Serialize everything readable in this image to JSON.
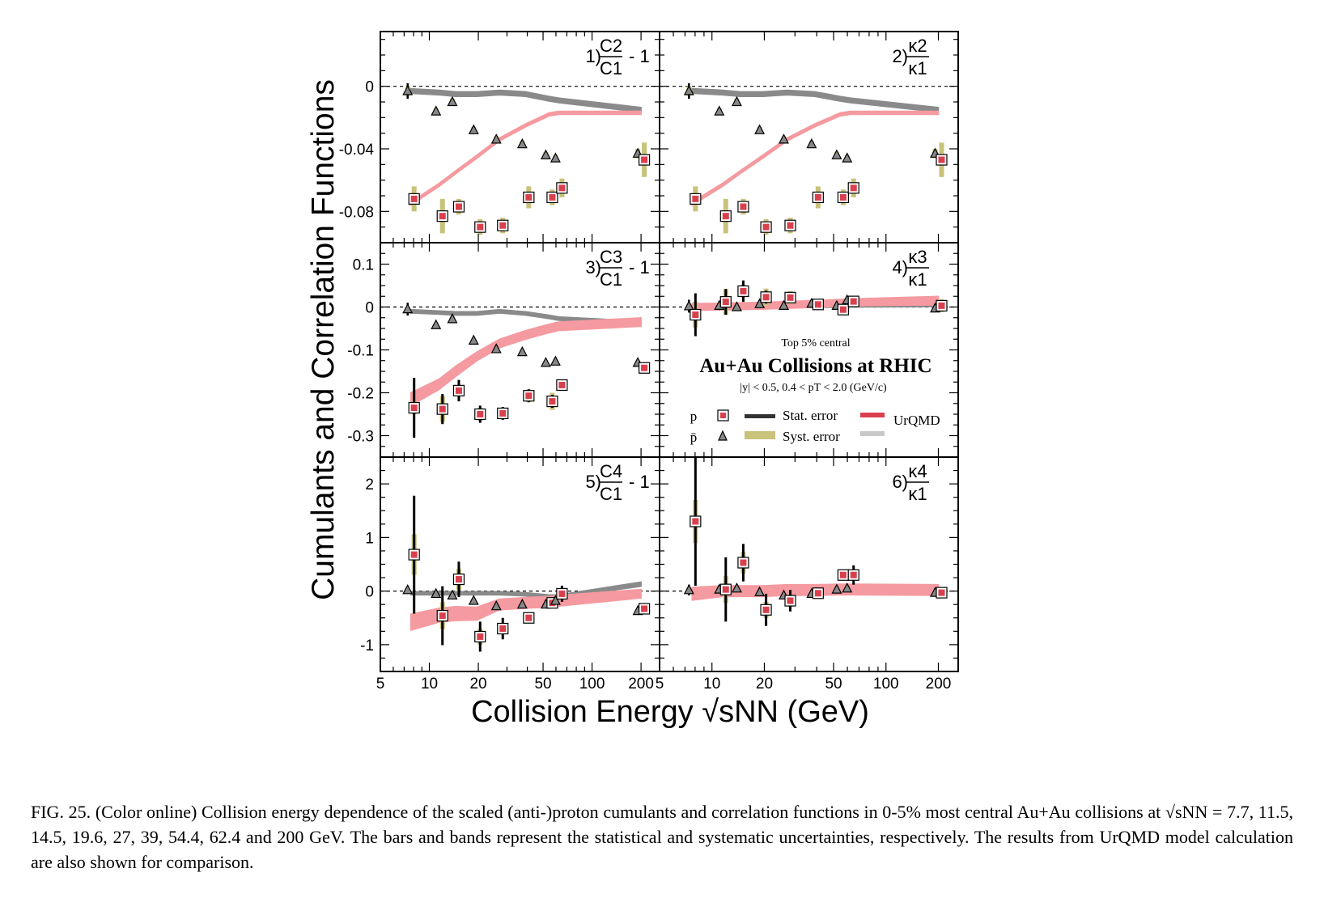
{
  "caption": "FIG. 25. (Color online) Collision energy dependence of the scaled (anti-)proton cumulants and correlation functions in 0-5% most central Au+Au collisions at √sNN = 7.7, 11.5, 14.5, 19.6, 27, 39, 54.4, 62.4 and 200 GeV. The bars and bands represent the statistical and systematic uncertainties, respectively. The results from UrQMD model calculation are also shown for comparison.",
  "colors": {
    "proton": "#d9404e",
    "antiproton": "#888888",
    "stat": "#000000",
    "syst": "#c8c27a",
    "urqmd_p": "#f59aa0",
    "urqmd_pbar": "#8a8a8a"
  },
  "legend": {
    "header": "Top 5% central",
    "title": "Au+Au Collisions at RHIC",
    "cuts": "|y| < 0.5, 0.4 < pT < 2.0 (GeV/c)",
    "p_label": "p",
    "pbar_label": "p̄",
    "stat_label": "Stat. error",
    "syst_label": "Syst. error",
    "model_label": "UrQMD"
  },
  "chart_data": {
    "type": "scatter",
    "xlabel": "Collision Energy √sNN (GeV)",
    "ylabel": "Cumulants and Correlation Functions",
    "xscale": "log",
    "xlim": [
      5,
      260
    ],
    "xticks": [
      5,
      10,
      20,
      50,
      100,
      200
    ],
    "legend_position": "panel-4 lower half",
    "energies": [
      7.7,
      11.5,
      14.5,
      19.6,
      27,
      39,
      54.4,
      62.4,
      200
    ],
    "panels": [
      {
        "id": 1,
        "label": "1)",
        "num": "C2",
        "den": "C1",
        "suffix": "- 1",
        "ylim": [
          -0.1,
          0.035
        ],
        "yticks": [
          0,
          -0.04,
          -0.08
        ],
        "yticklabels": [
          "0",
          "-0.04",
          "-0.08"
        ],
        "proton": [
          -0.072,
          -0.083,
          -0.077,
          -0.09,
          -0.089,
          -0.071,
          -0.071,
          -0.065,
          -0.047
        ],
        "proton_stat": [
          0.003,
          0.003,
          0.003,
          0.002,
          0.002,
          0.002,
          0.002,
          0.002,
          0.002
        ],
        "proton_syst": [
          0.008,
          0.011,
          0.005,
          0.005,
          0.005,
          0.007,
          0.005,
          0.006,
          0.011
        ],
        "antiproton": [
          -0.003,
          -0.016,
          -0.01,
          -0.028,
          -0.034,
          -0.037,
          -0.044,
          -0.046,
          -0.043
        ],
        "antiproton_stat": [
          0.005,
          0.002,
          0.002,
          0.002,
          0.002,
          0.002,
          0.002,
          0.002,
          0.002
        ],
        "antiproton_syst": [
          0.003,
          0.002,
          0.002,
          0.002,
          0.002,
          0.002,
          0.002,
          0.002,
          0.003
        ],
        "urqmd_p": [
          -0.075,
          -0.063,
          -0.055,
          -0.045,
          -0.034,
          -0.025,
          -0.018,
          -0.017,
          -0.017
        ],
        "urqmd_p_width": [
          0.001,
          0.001,
          0.001,
          0.001,
          0.001,
          0.001,
          0.001,
          0.001,
          0.001
        ],
        "urqmd_pbar": [
          -0.003,
          -0.004,
          -0.005,
          -0.005,
          -0.004,
          -0.005,
          -0.008,
          -0.009,
          -0.015
        ],
        "urqmd_pbar_width": [
          0.0015,
          0.0015,
          0.0015,
          0.0015,
          0.0015,
          0.0015,
          0.0015,
          0.0015,
          0.0015
        ]
      },
      {
        "id": 2,
        "label": "2)",
        "num": "κ2",
        "den": "κ1",
        "suffix": "",
        "ylim": [
          -0.1,
          0.035
        ],
        "yticks": [
          0,
          -0.04,
          -0.08
        ],
        "yticklabels": [
          "",
          "",
          ""
        ],
        "proton": [
          -0.072,
          -0.083,
          -0.077,
          -0.09,
          -0.089,
          -0.071,
          -0.071,
          -0.065,
          -0.047
        ],
        "proton_stat": [
          0.003,
          0.003,
          0.003,
          0.002,
          0.002,
          0.002,
          0.002,
          0.002,
          0.002
        ],
        "proton_syst": [
          0.008,
          0.011,
          0.005,
          0.005,
          0.005,
          0.007,
          0.005,
          0.006,
          0.011
        ],
        "antiproton": [
          -0.003,
          -0.016,
          -0.01,
          -0.028,
          -0.034,
          -0.037,
          -0.044,
          -0.046,
          -0.043
        ],
        "antiproton_stat": [
          0.005,
          0.002,
          0.002,
          0.002,
          0.002,
          0.002,
          0.002,
          0.002,
          0.002
        ],
        "antiproton_syst": [
          0.003,
          0.002,
          0.002,
          0.002,
          0.002,
          0.002,
          0.002,
          0.002,
          0.003
        ],
        "urqmd_p": [
          -0.075,
          -0.063,
          -0.055,
          -0.045,
          -0.034,
          -0.025,
          -0.018,
          -0.017,
          -0.017
        ],
        "urqmd_p_width": [
          0.001,
          0.001,
          0.001,
          0.001,
          0.001,
          0.001,
          0.001,
          0.001,
          0.001
        ],
        "urqmd_pbar": [
          -0.003,
          -0.004,
          -0.005,
          -0.005,
          -0.004,
          -0.005,
          -0.008,
          -0.009,
          -0.015
        ],
        "urqmd_pbar_width": [
          0.0015,
          0.0015,
          0.0015,
          0.0015,
          0.0015,
          0.0015,
          0.0015,
          0.0015,
          0.0015
        ]
      },
      {
        "id": 3,
        "label": "3)",
        "num": "C3",
        "den": "C1",
        "suffix": "- 1",
        "ylim": [
          -0.35,
          0.15
        ],
        "yticks": [
          0.1,
          0,
          -0.1,
          -0.2,
          -0.3
        ],
        "yticklabels": [
          "0.1",
          "0",
          "-0.1",
          "-0.2",
          "-0.3"
        ],
        "proton": [
          -0.235,
          -0.238,
          -0.195,
          -0.25,
          -0.248,
          -0.207,
          -0.22,
          -0.182,
          -0.142
        ],
        "proton_stat": [
          0.07,
          0.035,
          0.025,
          0.02,
          0.015,
          0.015,
          0.015,
          0.012,
          0.008
        ],
        "proton_syst": [
          0.015,
          0.03,
          0.012,
          0.015,
          0.012,
          0.015,
          0.02,
          0.012,
          0.01
        ],
        "antiproton": [
          -0.005,
          -0.042,
          -0.028,
          -0.078,
          -0.098,
          -0.105,
          -0.13,
          -0.127,
          -0.13
        ],
        "antiproton_stat": [
          0.015,
          0.008,
          0.008,
          0.006,
          0.005,
          0.005,
          0.005,
          0.005,
          0.006
        ],
        "antiproton_syst": [
          0.005,
          0.005,
          0.005,
          0.005,
          0.005,
          0.005,
          0.005,
          0.005,
          0.005
        ],
        "urqmd_p": [
          -0.215,
          -0.18,
          -0.15,
          -0.115,
          -0.085,
          -0.065,
          -0.05,
          -0.045,
          -0.035
        ],
        "urqmd_p_width": [
          0.015,
          0.012,
          0.012,
          0.01,
          0.01,
          0.01,
          0.01,
          0.01,
          0.01
        ],
        "urqmd_pbar": [
          -0.01,
          -0.013,
          -0.015,
          -0.015,
          -0.01,
          -0.015,
          -0.023,
          -0.027,
          -0.037
        ],
        "urqmd_pbar_width": [
          0.004,
          0.004,
          0.004,
          0.004,
          0.004,
          0.004,
          0.004,
          0.004,
          0.004
        ]
      },
      {
        "id": 4,
        "label": "4)",
        "num": "κ3",
        "den": "κ1",
        "suffix": "",
        "ylim": [
          -0.35,
          0.15
        ],
        "yticks": [
          0.1,
          0,
          -0.1,
          -0.2,
          -0.3
        ],
        "yticklabels": [
          "",
          "",
          "",
          "",
          ""
        ],
        "proton": [
          -0.018,
          0.012,
          0.037,
          0.023,
          0.022,
          0.006,
          -0.006,
          0.013,
          0.003
        ],
        "proton_stat": [
          0.05,
          0.03,
          0.025,
          0.015,
          0.012,
          0.01,
          0.012,
          0.012,
          0.01
        ],
        "proton_syst": [
          0.03,
          0.03,
          0.015,
          0.02,
          0.015,
          0.01,
          0.01,
          0.01,
          0.015
        ],
        "antiproton": [
          0.002,
          0.003,
          0.0,
          0.007,
          0.003,
          0.008,
          0.003,
          0.016,
          -0.003
        ],
        "antiproton_stat": [
          0.015,
          0.01,
          0.008,
          0.008,
          0.006,
          0.006,
          0.006,
          0.006,
          0.006
        ],
        "antiproton_syst": [
          0.006,
          0.005,
          0.005,
          0.005,
          0.005,
          0.005,
          0.005,
          0.005,
          0.006
        ],
        "urqmd_p": [
          0.0,
          0.001,
          0.002,
          0.003,
          0.005,
          0.007,
          0.01,
          0.011,
          0.015
        ],
        "urqmd_p_width": [
          0.008,
          0.008,
          0.008,
          0.008,
          0.008,
          0.008,
          0.008,
          0.008,
          0.01
        ],
        "urqmd_pbar": [
          0.0,
          0.0,
          0.001,
          0.001,
          0.001,
          0.002,
          0.002,
          0.003,
          0.004
        ],
        "urqmd_pbar_width": [
          0.003,
          0.003,
          0.003,
          0.003,
          0.003,
          0.003,
          0.003,
          0.003,
          0.003
        ]
      },
      {
        "id": 5,
        "label": "5)",
        "num": "C4",
        "den": "C1",
        "suffix": "- 1",
        "ylim": [
          -1.5,
          2.5
        ],
        "yticks": [
          2,
          1,
          0,
          -1
        ],
        "yticklabels": [
          "2",
          "1",
          "0",
          "-1"
        ],
        "proton": [
          0.68,
          -0.46,
          0.22,
          -0.85,
          -0.7,
          -0.5,
          -0.22,
          -0.05,
          -0.33
        ],
        "proton_stat": [
          1.1,
          0.55,
          0.33,
          0.28,
          0.2,
          0.1,
          0.1,
          0.15,
          0.06
        ],
        "proton_syst": [
          0.38,
          0.25,
          0.2,
          0.15,
          0.1,
          0.06,
          0.08,
          0.1,
          0.1
        ],
        "antiproton": [
          0.02,
          -0.05,
          -0.08,
          -0.18,
          -0.28,
          -0.25,
          -0.25,
          -0.18,
          -0.37
        ],
        "antiproton_stat": [
          0.05,
          0.05,
          0.05,
          0.05,
          0.05,
          0.05,
          0.05,
          0.05,
          0.05
        ],
        "antiproton_syst": [
          0.04,
          0.04,
          0.04,
          0.04,
          0.04,
          0.04,
          0.04,
          0.04,
          0.04
        ],
        "urqmd_p": [
          -0.58,
          -0.45,
          -0.42,
          -0.42,
          -0.25,
          -0.22,
          -0.2,
          -0.18,
          -0.05
        ],
        "urqmd_p_width": [
          0.15,
          0.13,
          0.13,
          0.12,
          0.1,
          0.1,
          0.1,
          0.1,
          0.08
        ],
        "urqmd_pbar": [
          -0.04,
          -0.04,
          -0.04,
          -0.04,
          -0.04,
          -0.06,
          -0.1,
          -0.1,
          0.13
        ],
        "urqmd_pbar_width": [
          0.03,
          0.03,
          0.03,
          0.03,
          0.03,
          0.03,
          0.03,
          0.03,
          0.04
        ]
      },
      {
        "id": 6,
        "label": "6)",
        "num": "κ4",
        "den": "κ1",
        "suffix": "",
        "ylim": [
          -1.5,
          2.5
        ],
        "yticks": [
          2,
          1,
          0,
          -1
        ],
        "yticklabels": [
          "",
          "",
          "",
          ""
        ],
        "proton": [
          1.3,
          0.03,
          0.53,
          -0.35,
          -0.18,
          -0.04,
          0.3,
          0.3,
          -0.03
        ],
        "proton_stat": [
          1.2,
          0.6,
          0.35,
          0.3,
          0.2,
          0.1,
          0.1,
          0.18,
          0.07
        ],
        "proton_syst": [
          0.4,
          0.25,
          0.2,
          0.15,
          0.12,
          0.06,
          0.06,
          0.1,
          0.1
        ],
        "antiproton": [
          0.02,
          0.03,
          0.05,
          -0.02,
          -0.08,
          -0.05,
          0.03,
          0.05,
          -0.03
        ],
        "antiproton_stat": [
          0.1,
          0.05,
          0.05,
          0.05,
          0.05,
          0.05,
          0.05,
          0.05,
          0.05
        ],
        "antiproton_syst": [
          0.05,
          0.04,
          0.04,
          0.04,
          0.04,
          0.04,
          0.04,
          0.04,
          0.04
        ],
        "urqmd_p": [
          -0.05,
          0.0,
          0.0,
          0.0,
          0.02,
          0.02,
          0.03,
          0.03,
          0.02
        ],
        "urqmd_p_width": [
          0.12,
          0.1,
          0.1,
          0.1,
          0.1,
          0.1,
          0.1,
          0.1,
          0.1
        ],
        "urqmd_pbar": [
          0.0,
          0.0,
          0.0,
          0.0,
          0.0,
          0.0,
          0.0,
          0.0,
          0.0
        ],
        "urqmd_pbar_width": [
          0.03,
          0.03,
          0.03,
          0.03,
          0.03,
          0.03,
          0.03,
          0.03,
          0.03
        ]
      }
    ]
  }
}
